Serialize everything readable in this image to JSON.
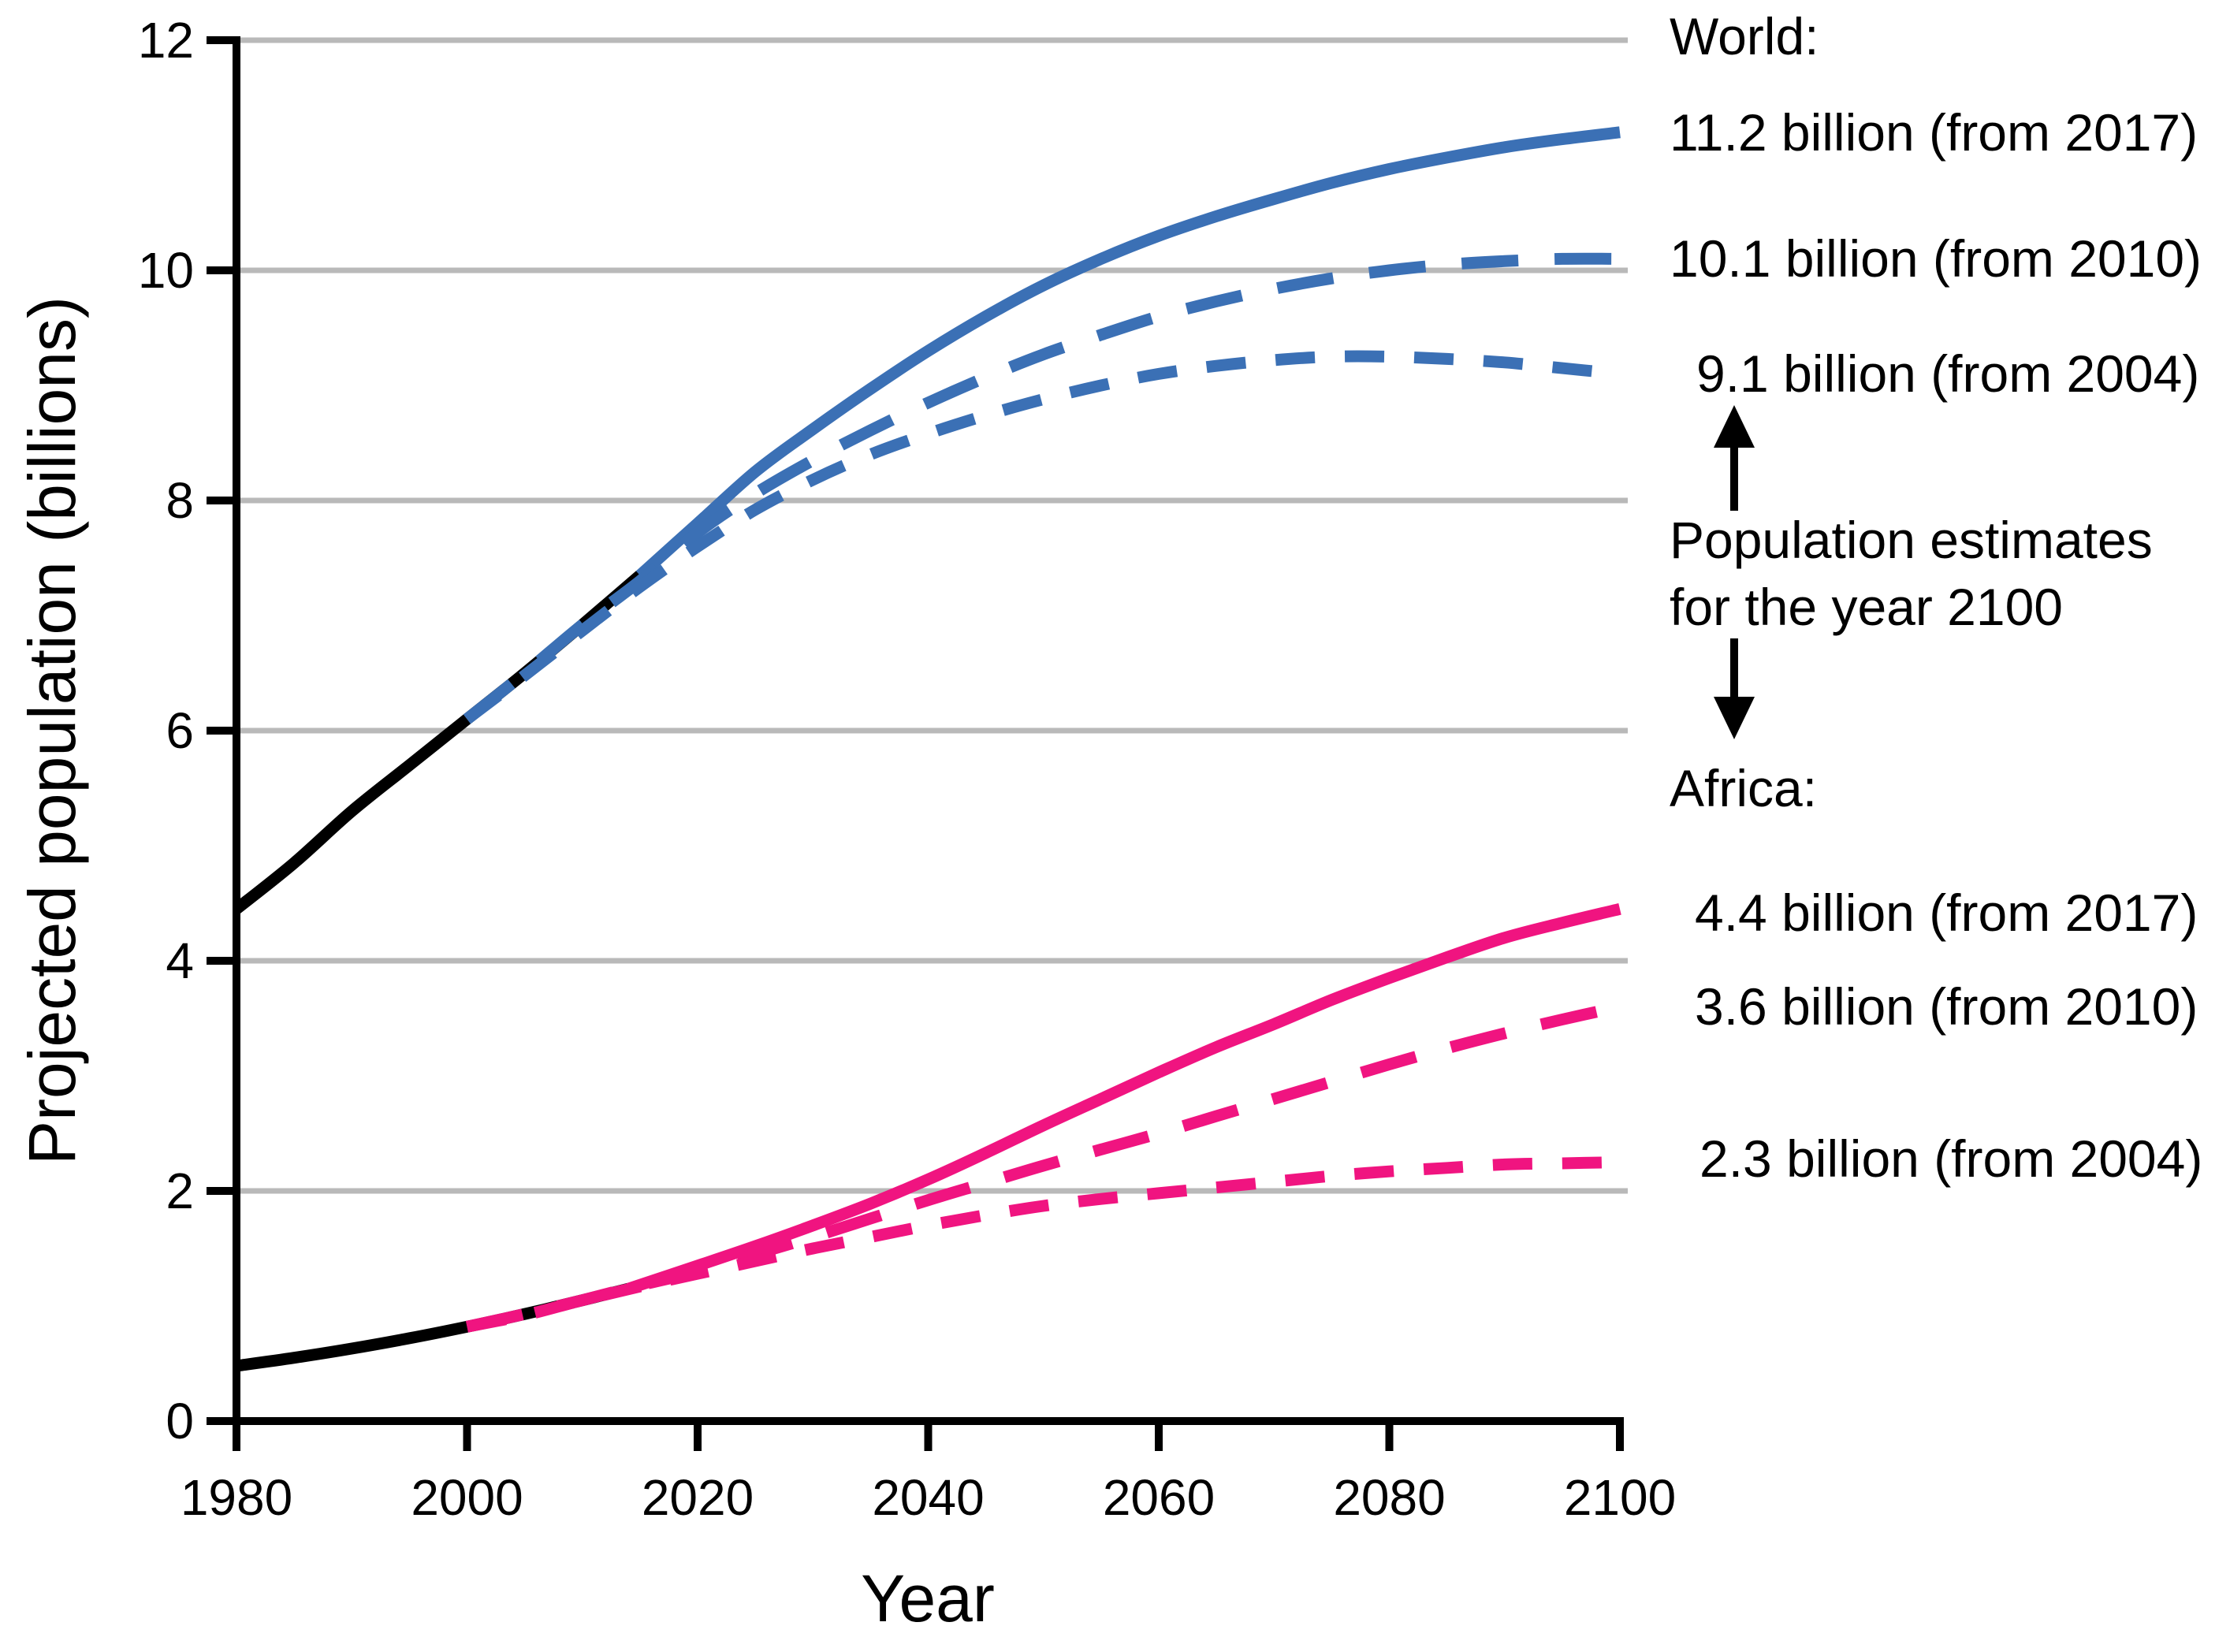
{
  "chart_data": {
    "type": "line",
    "title": "",
    "xlabel": "Year",
    "ylabel": "Projected population (billions)",
    "xlim": [
      1980,
      2100
    ],
    "ylim": [
      0,
      12
    ],
    "x_ticks": [
      1980,
      2000,
      2020,
      2040,
      2060,
      2080,
      2100
    ],
    "y_ticks": [
      0,
      2,
      4,
      6,
      8,
      10,
      12
    ],
    "grid": "horizontal-gray-lines",
    "legend": "none (direct right-side labels)",
    "colors": {
      "world": "#3B70B5",
      "africa": "#F01480",
      "historical": "#000000",
      "grid": "#B9B9B9",
      "axis": "#000000",
      "background": "#FFFFFF"
    },
    "series": [
      {
        "name": "World historical",
        "color": "historical",
        "dash": null,
        "points": [
          [
            1980,
            4.45
          ],
          [
            1985,
            4.85
          ],
          [
            1990,
            5.3
          ],
          [
            1995,
            5.7
          ],
          [
            2000,
            6.1
          ],
          [
            2005,
            6.5
          ],
          [
            2010,
            6.92
          ],
          [
            2015,
            7.35
          ]
        ]
      },
      {
        "name": "World projection (2017 revision, 11.2 billion in 2100)",
        "color": "world",
        "dash": null,
        "points": [
          [
            2015,
            7.35
          ],
          [
            2020,
            7.8
          ],
          [
            2025,
            8.25
          ],
          [
            2030,
            8.62
          ],
          [
            2035,
            8.97
          ],
          [
            2040,
            9.3
          ],
          [
            2045,
            9.6
          ],
          [
            2050,
            9.87
          ],
          [
            2055,
            10.1
          ],
          [
            2060,
            10.3
          ],
          [
            2065,
            10.47
          ],
          [
            2070,
            10.62
          ],
          [
            2075,
            10.76
          ],
          [
            2080,
            10.88
          ],
          [
            2085,
            10.98
          ],
          [
            2090,
            11.07
          ],
          [
            2095,
            11.14
          ],
          [
            2100,
            11.2
          ]
        ]
      },
      {
        "name": "World projection (2010 revision, 10.1 billion in 2100)",
        "color": "world",
        "dash": [
          72,
          46
        ],
        "points": [
          [
            2000,
            6.1
          ],
          [
            2005,
            6.5
          ],
          [
            2010,
            6.92
          ],
          [
            2015,
            7.3
          ],
          [
            2020,
            7.72
          ],
          [
            2025,
            8.06
          ],
          [
            2030,
            8.35
          ],
          [
            2035,
            8.61
          ],
          [
            2040,
            8.85
          ],
          [
            2045,
            9.07
          ],
          [
            2050,
            9.27
          ],
          [
            2055,
            9.44
          ],
          [
            2060,
            9.6
          ],
          [
            2065,
            9.73
          ],
          [
            2070,
            9.84
          ],
          [
            2075,
            9.93
          ],
          [
            2080,
            10.0
          ],
          [
            2085,
            10.05
          ],
          [
            2090,
            10.08
          ],
          [
            2095,
            10.1
          ],
          [
            2100,
            10.1
          ]
        ]
      },
      {
        "name": "World projection (2004 revision, 9.1 billion in 2100)",
        "color": "world",
        "dash": [
          50,
          38
        ],
        "points": [
          [
            2000,
            6.1
          ],
          [
            2005,
            6.48
          ],
          [
            2010,
            6.87
          ],
          [
            2015,
            7.25
          ],
          [
            2020,
            7.6
          ],
          [
            2025,
            7.92
          ],
          [
            2030,
            8.18
          ],
          [
            2035,
            8.4
          ],
          [
            2040,
            8.58
          ],
          [
            2045,
            8.74
          ],
          [
            2050,
            8.88
          ],
          [
            2055,
            9.0
          ],
          [
            2060,
            9.1
          ],
          [
            2065,
            9.17
          ],
          [
            2070,
            9.22
          ],
          [
            2075,
            9.25
          ],
          [
            2080,
            9.25
          ],
          [
            2085,
            9.23
          ],
          [
            2090,
            9.2
          ],
          [
            2095,
            9.15
          ],
          [
            2100,
            9.1
          ]
        ]
      },
      {
        "name": "Africa historical",
        "color": "historical",
        "dash": null,
        "points": [
          [
            1980,
            0.48
          ],
          [
            1985,
            0.55
          ],
          [
            1990,
            0.63
          ],
          [
            1995,
            0.72
          ],
          [
            2000,
            0.82
          ],
          [
            2005,
            0.93
          ],
          [
            2010,
            1.05
          ],
          [
            2014,
            1.15
          ]
        ]
      },
      {
        "name": "Africa projection (2017 revision, 4.4 billion in 2100)",
        "color": "africa",
        "dash": null,
        "points": [
          [
            2014,
            1.15
          ],
          [
            2020,
            1.35
          ],
          [
            2025,
            1.52
          ],
          [
            2030,
            1.7
          ],
          [
            2035,
            1.89
          ],
          [
            2040,
            2.1
          ],
          [
            2045,
            2.33
          ],
          [
            2050,
            2.57
          ],
          [
            2055,
            2.8
          ],
          [
            2060,
            3.03
          ],
          [
            2065,
            3.25
          ],
          [
            2070,
            3.45
          ],
          [
            2075,
            3.66
          ],
          [
            2080,
            3.85
          ],
          [
            2085,
            4.03
          ],
          [
            2090,
            4.2
          ],
          [
            2095,
            4.33
          ],
          [
            2100,
            4.45
          ]
        ]
      },
      {
        "name": "Africa projection (2010 revision, 3.6 billion in 2100)",
        "color": "africa",
        "dash": [
          72,
          46
        ],
        "points": [
          [
            2000,
            0.82
          ],
          [
            2005,
            0.93
          ],
          [
            2010,
            1.05
          ],
          [
            2015,
            1.18
          ],
          [
            2020,
            1.3
          ],
          [
            2025,
            1.45
          ],
          [
            2030,
            1.6
          ],
          [
            2035,
            1.76
          ],
          [
            2040,
            1.92
          ],
          [
            2045,
            2.07
          ],
          [
            2050,
            2.22
          ],
          [
            2055,
            2.36
          ],
          [
            2060,
            2.5
          ],
          [
            2065,
            2.65
          ],
          [
            2070,
            2.8
          ],
          [
            2075,
            2.95
          ],
          [
            2080,
            3.1
          ],
          [
            2085,
            3.24
          ],
          [
            2090,
            3.37
          ],
          [
            2095,
            3.49
          ],
          [
            2100,
            3.6
          ]
        ]
      },
      {
        "name": "Africa projection (2004 revision, 2.3 billion in 2100)",
        "color": "africa",
        "dash": [
          50,
          38
        ],
        "points": [
          [
            2000,
            0.82
          ],
          [
            2005,
            0.92
          ],
          [
            2010,
            1.05
          ],
          [
            2015,
            1.17
          ],
          [
            2020,
            1.28
          ],
          [
            2025,
            1.39
          ],
          [
            2030,
            1.5
          ],
          [
            2035,
            1.6
          ],
          [
            2040,
            1.7
          ],
          [
            2045,
            1.79
          ],
          [
            2050,
            1.87
          ],
          [
            2055,
            1.93
          ],
          [
            2060,
            1.98
          ],
          [
            2065,
            2.03
          ],
          [
            2070,
            2.08
          ],
          [
            2075,
            2.13
          ],
          [
            2080,
            2.17
          ],
          [
            2085,
            2.2
          ],
          [
            2090,
            2.23
          ],
          [
            2095,
            2.24
          ],
          [
            2100,
            2.25
          ]
        ]
      }
    ]
  },
  "annotations": {
    "world_header": "World:",
    "world_2017": "11.2 billion (from 2017)",
    "world_2010": "10.1 billion (from 2010)",
    "world_2004": "9.1 billion (from 2004)",
    "estimates_line1": "Population estimates",
    "estimates_line2": "for the year 2100",
    "africa_header": "Africa:",
    "africa_2017": "4.4 billion (from 2017)",
    "africa_2010": "3.6 billion (from 2010)",
    "africa_2004": "2.3 billion (from 2004)"
  }
}
